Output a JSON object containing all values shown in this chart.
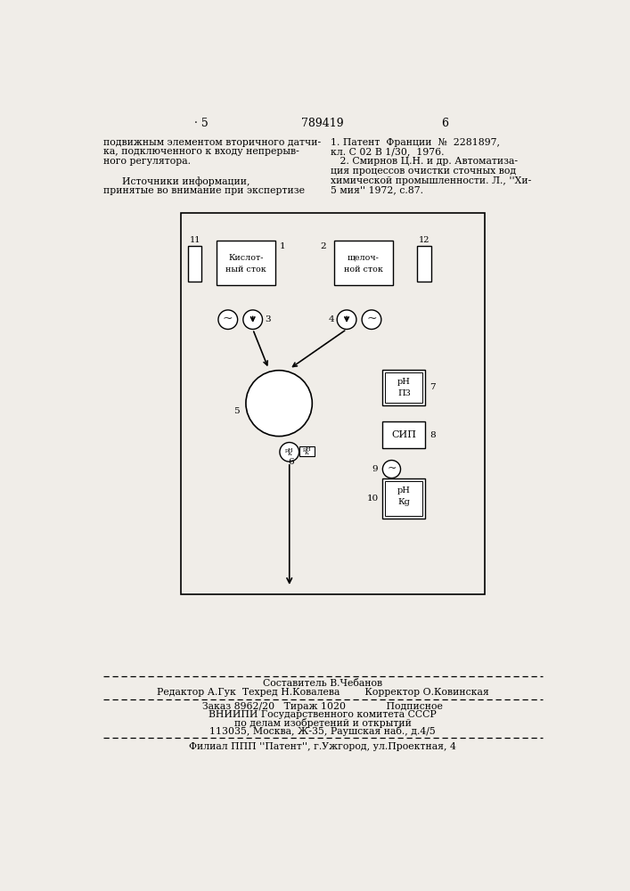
{
  "page_number_left": "· 5",
  "page_number_center": "789419",
  "page_number_right": "6",
  "left_text_lines": [
    "подвижным элементом вторичного датчи-",
    "ка, подключенного к входу непрерыв-",
    "ного регулятора.",
    "",
    "      Источники информации,",
    "принятые во внимание при экспертизе"
  ],
  "right_text_lines": [
    "1. Патент  Франции  №  2281897,",
    "кл. С 02 В 1/30,  1976.",
    "   2. Смирнов Ц.Н. и др. Автоматиза-",
    "ция процессов очистки сточных вод",
    "химической промышленности. Л., ''Хи-",
    "5 мия'' 1972, с.87."
  ],
  "footer_line1": "Составитель В.Чебанов",
  "footer_line2_left": "Редактор А.Гук  Техред Н.Ковалева",
  "footer_line2_right": "Корректор О.Ковинская",
  "footer_line3": "Заказ 8962/20   Тираж 1020             Подписное",
  "footer_line4": "ВНИИПИ Государственного комитета СССР",
  "footer_line5": "по делам изобретений и открытий",
  "footer_line6": "113035, Москва, Ж-35, Раушская наб., д.4/5",
  "footer_line7": "Филиал ППП ''Патент'', г.Ужгород, ул.Проектная, 4",
  "bg_color": "#f0ede8"
}
